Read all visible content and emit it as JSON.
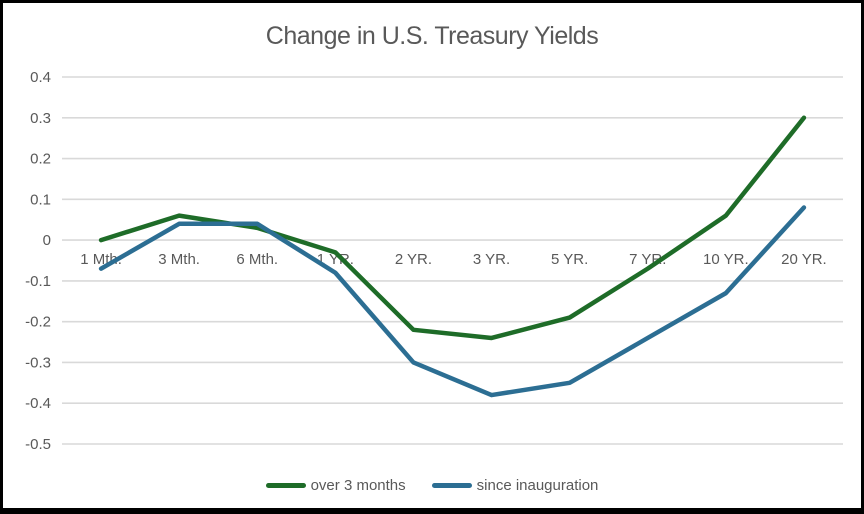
{
  "chart_data": {
    "type": "line",
    "title": "Change in U.S. Treasury Yields",
    "categories": [
      "1 Mth.",
      "3 Mth.",
      "6 Mth.",
      "1 YR.",
      "2 YR.",
      "3 YR.",
      "5 YR.",
      "7 YR.",
      "10 YR.",
      "20 YR."
    ],
    "series": [
      {
        "name": "over 3 months",
        "color": "#1E6C28",
        "values": [
          0.0,
          0.06,
          0.03,
          -0.03,
          -0.22,
          -0.24,
          -0.19,
          -0.07,
          0.06,
          0.3
        ]
      },
      {
        "name": "since inauguration",
        "color": "#2C6E93",
        "values": [
          -0.07,
          0.04,
          0.04,
          -0.08,
          -0.3,
          -0.38,
          -0.35,
          -0.24,
          -0.13,
          0.08
        ]
      }
    ],
    "xlabel": "",
    "ylabel": "",
    "ylim": [
      -0.5,
      0.4
    ],
    "ytick_step": 0.1,
    "ytick_labels": [
      "0.4",
      "0.3",
      "0.2",
      "0.1",
      "0",
      "-0.1",
      "-0.2",
      "-0.3",
      "-0.4",
      "-0.5"
    ],
    "grid": true,
    "legend_position": "bottom",
    "text_color": "#595959",
    "gridline_color": "#D9D9D9",
    "background_color": "#FFFFFF",
    "border_color": "#000000"
  }
}
